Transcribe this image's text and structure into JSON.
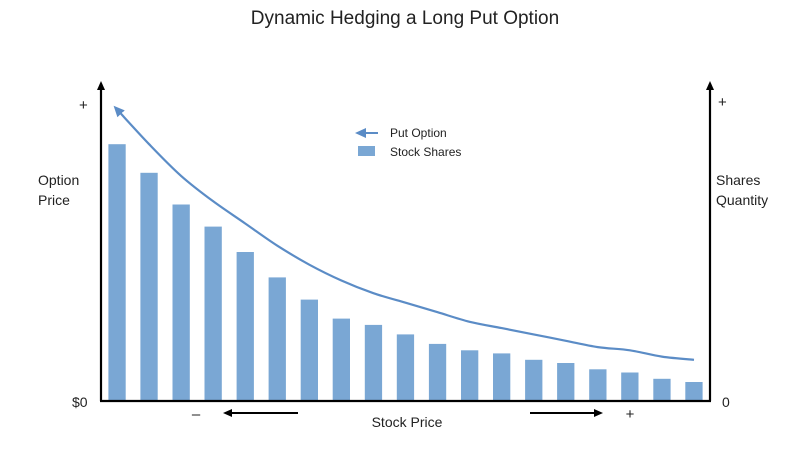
{
  "chart_data": {
    "type": "bar",
    "title": "Dynamic Hedging a Long Put Option",
    "xlabel": "Stock Price",
    "ylabel_left": [
      "Option",
      "Price"
    ],
    "ylabel_right": [
      "Shares",
      "Quantity"
    ],
    "left_axis": {
      "top_label": "+",
      "bottom_label": "$0"
    },
    "right_axis": {
      "top_label": "+",
      "bottom_label": "0"
    },
    "x_direction": {
      "left_label": "–",
      "right_label": "+"
    },
    "ylim": [
      0,
      100
    ],
    "legend": {
      "placement": "top-center",
      "entries": [
        {
          "name": "Put Option",
          "marker": "arrow-line"
        },
        {
          "name": "Stock Shares",
          "marker": "box"
        }
      ]
    },
    "series": [
      {
        "name": "Stock Shares",
        "kind": "bar",
        "color": "#7aa7d4",
        "values": [
          81,
          72,
          62,
          55,
          47,
          39,
          32,
          26,
          24,
          21,
          18,
          16,
          15,
          13,
          12,
          10,
          9,
          7,
          6
        ]
      },
      {
        "name": "Put Option",
        "kind": "curve",
        "color": "#5b8cc6",
        "x": [
          0,
          1,
          2,
          3,
          4,
          5,
          6,
          7,
          8,
          9,
          10,
          11,
          12,
          13,
          14,
          15,
          16,
          17,
          18
        ],
        "values": [
          92,
          81,
          71,
          63,
          56,
          49,
          43,
          38,
          34,
          31,
          28,
          25,
          23,
          21,
          19,
          17,
          16,
          14,
          13
        ]
      }
    ]
  }
}
